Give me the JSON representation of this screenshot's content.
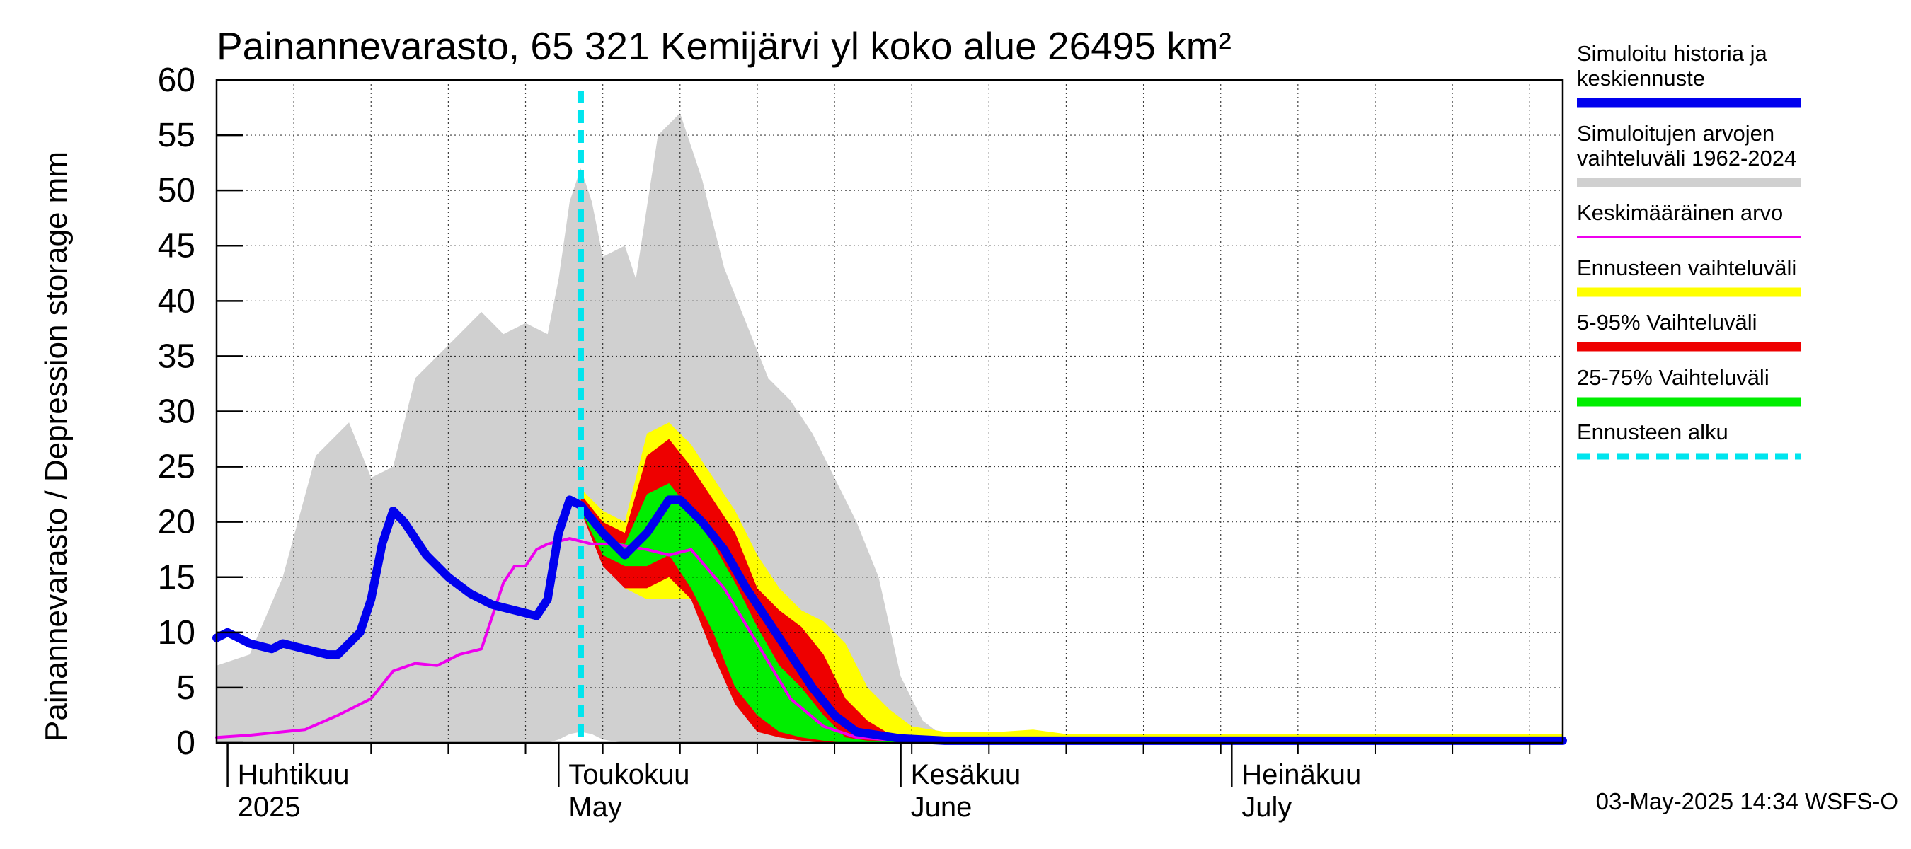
{
  "chart_data": {
    "type": "area",
    "title": "Painannevarasto, 65 321 Kemijärvi yl koko alue 26495 km²",
    "ylabel": "Painannevarasto / Depression storage    mm",
    "ylim": [
      0,
      60
    ],
    "yticks": [
      0,
      5,
      10,
      15,
      20,
      25,
      30,
      35,
      40,
      45,
      50,
      55,
      60
    ],
    "xlim": [
      "2025-03-31",
      "2025-07-31"
    ],
    "grid": true,
    "month_labels": [
      {
        "date": "2025-04-01",
        "fi": "Huhtikuu",
        "en": "2025"
      },
      {
        "date": "2025-05-01",
        "fi": "Toukokuu",
        "en": "May"
      },
      {
        "date": "2025-06-01",
        "fi": "Kesäkuu",
        "en": "June"
      },
      {
        "date": "2025-07-01",
        "fi": "Heinäkuu",
        "en": "July"
      }
    ],
    "forecast_start": "2025-05-03",
    "footer": "03-May-2025 14:34 WSFS-O",
    "legend": [
      {
        "label": "Simuloitu historia ja keskiennuste",
        "color": "#0000ee",
        "style": "thick"
      },
      {
        "label": "Simuloitujen arvojen vaihteluväli 1962-2024",
        "color": "#d0d0d0",
        "style": "thick"
      },
      {
        "label": "Keskimääräinen arvo",
        "color": "#ee00ee",
        "style": "thin"
      },
      {
        "label": "Ennusteen vaihteluväli",
        "color": "#ffff00",
        "style": "thick"
      },
      {
        "label": "5-95% Vaihteluväli",
        "color": "#ee0000",
        "style": "thick"
      },
      {
        "label": "25-75% Vaihteluväli",
        "color": "#00ee00",
        "style": "thick"
      },
      {
        "label": "Ennusteen alku",
        "color": "#00e5ee",
        "style": "dashed"
      }
    ],
    "series": [
      {
        "name": "Simuloitujen arvojen vaihteluväli 1962-2024",
        "kind": "band",
        "color": "#d0d0d0",
        "x": [
          "2025-03-31",
          "2025-04-03",
          "2025-04-06",
          "2025-04-09",
          "2025-04-12",
          "2025-04-14",
          "2025-04-16",
          "2025-04-18",
          "2025-04-20",
          "2025-04-22",
          "2025-04-24",
          "2025-04-26",
          "2025-04-28",
          "2025-04-30",
          "2025-05-01",
          "2025-05-02",
          "2025-05-03",
          "2025-05-04",
          "2025-05-05",
          "2025-05-07",
          "2025-05-08",
          "2025-05-10",
          "2025-05-12",
          "2025-05-14",
          "2025-05-16",
          "2025-05-18",
          "2025-05-20",
          "2025-05-22",
          "2025-05-24",
          "2025-05-26",
          "2025-05-28",
          "2025-05-30",
          "2025-06-01",
          "2025-06-03",
          "2025-06-05",
          "2025-06-07",
          "2025-06-09",
          "2025-06-11",
          "2025-06-13",
          "2025-06-15",
          "2025-06-18",
          "2025-07-31"
        ],
        "high": [
          7,
          8,
          15,
          26,
          29,
          24,
          25,
          33,
          35,
          37,
          39,
          37,
          38,
          37,
          42,
          49,
          52,
          49,
          44,
          45,
          42,
          55,
          57,
          51,
          43,
          38,
          33,
          31,
          28,
          24,
          20,
          15,
          6,
          2,
          0.5,
          0.5,
          0.5,
          0.5,
          1,
          0.5,
          0,
          0
        ],
        "low": [
          0,
          0,
          0,
          0,
          0,
          0,
          0,
          0,
          0,
          0,
          0,
          0,
          0,
          0,
          0.3,
          0.8,
          1,
          0.8,
          0.3,
          0,
          0,
          0,
          0,
          0,
          0,
          0,
          0,
          0,
          0,
          0,
          0,
          0,
          0,
          0,
          0,
          0,
          0,
          0,
          0,
          0,
          0,
          0
        ]
      },
      {
        "name": "Ennusteen vaihteluväli",
        "kind": "band",
        "color": "#ffff00",
        "x": [
          "2025-05-03",
          "2025-05-05",
          "2025-05-07",
          "2025-05-09",
          "2025-05-11",
          "2025-05-13",
          "2025-05-15",
          "2025-05-17",
          "2025-05-19",
          "2025-05-21",
          "2025-05-23",
          "2025-05-25",
          "2025-05-27",
          "2025-05-29",
          "2025-05-31",
          "2025-06-02",
          "2025-06-05",
          "2025-06-10",
          "2025-06-13",
          "2025-06-16",
          "2025-07-31"
        ],
        "high": [
          23,
          21,
          20,
          28,
          29,
          27,
          24,
          21,
          17,
          14,
          12,
          11,
          9,
          5,
          3,
          1.5,
          1,
          1,
          1.2,
          0.8,
          0.8
        ],
        "low": [
          21,
          17,
          14,
          13,
          13,
          13,
          10,
          5,
          3,
          1,
          0.3,
          0,
          0,
          0,
          0,
          0,
          0,
          0,
          0,
          0,
          0
        ]
      },
      {
        "name": "5-95% Vaihteluväli",
        "kind": "band",
        "color": "#ee0000",
        "x": [
          "2025-05-03",
          "2025-05-05",
          "2025-05-07",
          "2025-05-09",
          "2025-05-11",
          "2025-05-13",
          "2025-05-15",
          "2025-05-17",
          "2025-05-19",
          "2025-05-21",
          "2025-05-23",
          "2025-05-25",
          "2025-05-27",
          "2025-05-29",
          "2025-05-31",
          "2025-06-02",
          "2025-06-05",
          "2025-07-31"
        ],
        "high": [
          22.5,
          20,
          19,
          26,
          27.5,
          25,
          22,
          19,
          14,
          12,
          10.5,
          8,
          4,
          2,
          0.8,
          0.3,
          0.2,
          0.2
        ],
        "low": [
          21,
          16,
          14,
          14,
          15,
          13,
          8,
          3.5,
          1,
          0.5,
          0.2,
          0,
          0,
          0,
          0,
          0,
          0,
          0
        ]
      },
      {
        "name": "25-75% Vaihteluväli",
        "kind": "band",
        "color": "#00ee00",
        "x": [
          "2025-05-03",
          "2025-05-05",
          "2025-05-07",
          "2025-05-09",
          "2025-05-11",
          "2025-05-13",
          "2025-05-15",
          "2025-05-17",
          "2025-05-19",
          "2025-05-21",
          "2025-05-23",
          "2025-05-25",
          "2025-05-27",
          "2025-05-29",
          "2025-05-31",
          "2025-06-02",
          "2025-07-31"
        ],
        "high": [
          21.5,
          18.5,
          18,
          22.5,
          23.5,
          21,
          18,
          14.5,
          10.5,
          7,
          5,
          2.5,
          0.5,
          0.2,
          0.2,
          0.2,
          0.2
        ],
        "low": [
          21,
          17,
          16,
          16,
          17,
          14,
          10,
          5,
          2.5,
          1,
          0.5,
          0.2,
          0,
          0,
          0,
          0,
          0
        ]
      },
      {
        "name": "Keskimääräinen arvo",
        "kind": "line",
        "color": "#ee00ee",
        "x": [
          "2025-03-31",
          "2025-04-03",
          "2025-04-06",
          "2025-04-08",
          "2025-04-11",
          "2025-04-14",
          "2025-04-16",
          "2025-04-18",
          "2025-04-20",
          "2025-04-22",
          "2025-04-24",
          "2025-04-26",
          "2025-04-27",
          "2025-04-28",
          "2025-04-29",
          "2025-04-30",
          "2025-05-02",
          "2025-05-04",
          "2025-05-06",
          "2025-05-09",
          "2025-05-11",
          "2025-05-13",
          "2025-05-16",
          "2025-05-19",
          "2025-05-22",
          "2025-05-25",
          "2025-05-28",
          "2025-06-01",
          "2025-06-05",
          "2025-06-10",
          "2025-07-31"
        ],
        "y": [
          0.5,
          0.7,
          1,
          1.2,
          2.5,
          4,
          6.5,
          7.2,
          7,
          8,
          8.5,
          14.5,
          16,
          16,
          17.5,
          18,
          18.5,
          18,
          18,
          17.5,
          17,
          17.5,
          14,
          9,
          4,
          1.5,
          0.5,
          0.2,
          0.1,
          0,
          0
        ]
      },
      {
        "name": "Simuloitu historia ja keskiennuste",
        "kind": "line",
        "color": "#0000ee",
        "x": [
          "2025-03-31",
          "2025-04-01",
          "2025-04-03",
          "2025-04-05",
          "2025-04-06",
          "2025-04-08",
          "2025-04-10",
          "2025-04-11",
          "2025-04-12",
          "2025-04-13",
          "2025-04-14",
          "2025-04-15",
          "2025-04-16",
          "2025-04-17",
          "2025-04-19",
          "2025-04-21",
          "2025-04-23",
          "2025-04-25",
          "2025-04-27",
          "2025-04-29",
          "2025-04-30",
          "2025-05-01",
          "2025-05-02",
          "2025-05-03",
          "2025-05-05",
          "2025-05-07",
          "2025-05-09",
          "2025-05-11",
          "2025-05-12",
          "2025-05-14",
          "2025-05-16",
          "2025-05-18",
          "2025-05-20",
          "2025-05-22",
          "2025-05-24",
          "2025-05-26",
          "2025-05-28",
          "2025-06-01",
          "2025-06-05",
          "2025-07-31"
        ],
        "y": [
          9.5,
          10,
          9,
          8.5,
          9,
          8.5,
          8,
          8,
          9,
          10,
          13,
          18,
          21,
          20,
          17,
          15,
          13.5,
          12.5,
          12,
          11.5,
          13,
          19,
          22,
          21.5,
          19,
          17,
          19,
          22,
          22,
          20,
          17.5,
          14,
          11,
          8,
          5,
          2.5,
          1,
          0.4,
          0.2,
          0.2
        ]
      }
    ]
  }
}
